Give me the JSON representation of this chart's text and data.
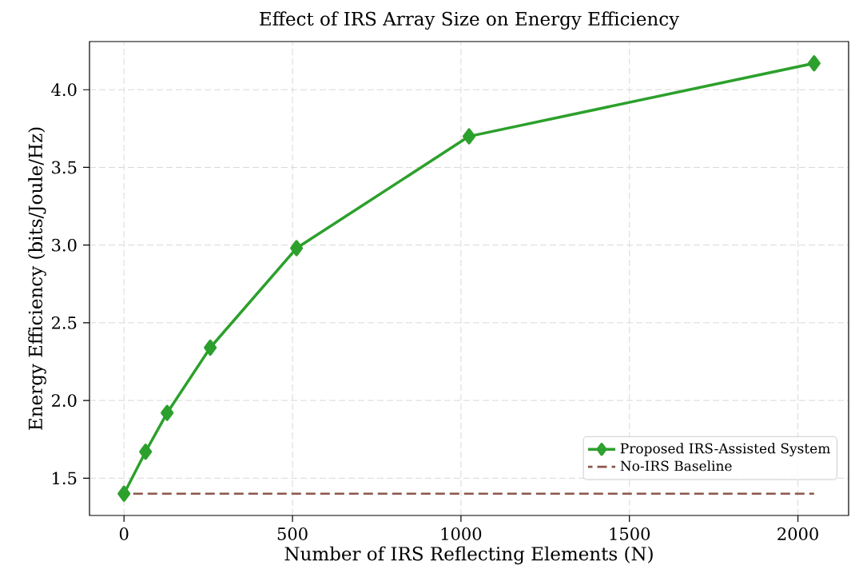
{
  "chart_data": {
    "type": "line",
    "title": "Effect of IRS Array Size on Energy Efficiency",
    "xlabel": "Number of IRS Reflecting Elements (N)",
    "ylabel": "Energy Efficiency (bits/Joule/Hz)",
    "series": [
      {
        "name": "Proposed IRS-Assisted System",
        "color": "#2ca02c",
        "x": [
          0,
          64,
          128,
          256,
          512,
          1024,
          2048
        ],
        "values": [
          1.4,
          1.67,
          1.92,
          2.34,
          2.98,
          3.7,
          4.17
        ],
        "marker": "diamond"
      },
      {
        "name": "No-IRS Baseline",
        "color": "#8c564b",
        "x": [
          0,
          2048
        ],
        "values": [
          1.4,
          1.4
        ],
        "line_style": "dashed",
        "marker": "none"
      }
    ],
    "xlim": [
      -102.4,
      2150.4
    ],
    "ylim": [
      1.26,
      4.31
    ],
    "xticks": [
      0,
      500,
      1000,
      1500,
      2000
    ],
    "yticks": [
      1.5,
      {
        "value": 2.0,
        "label": "2.0"
      },
      2.5,
      {
        "value": 3.0,
        "label": "3.0"
      },
      3.5,
      {
        "value": 4.0,
        "label": "4.0"
      }
    ],
    "grid": true,
    "legend": "bottom right",
    "line_style": "solid"
  }
}
